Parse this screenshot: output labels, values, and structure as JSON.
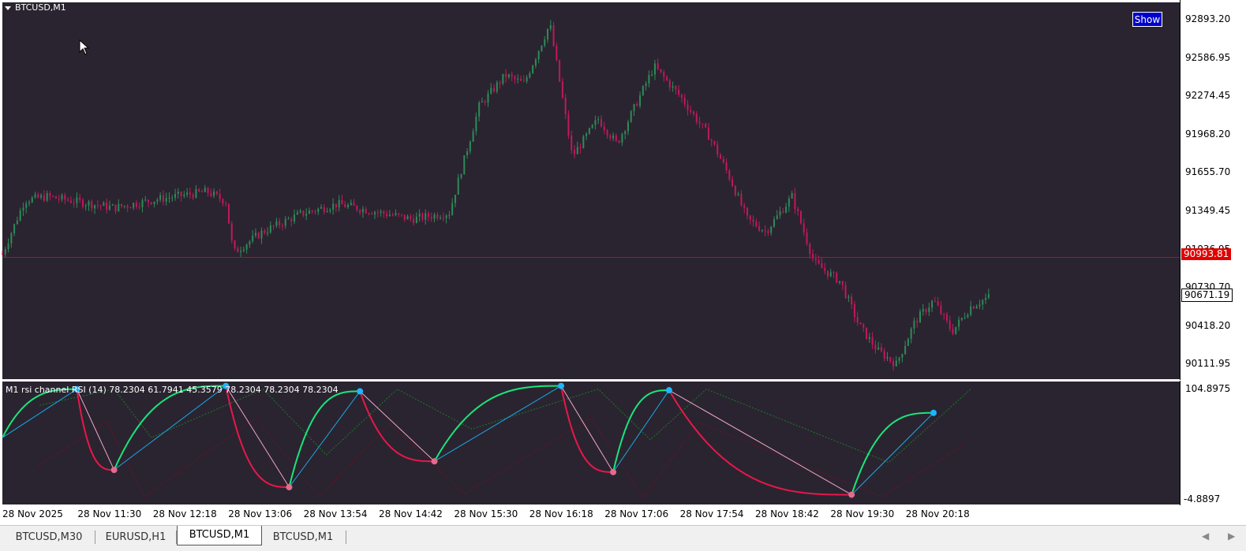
{
  "window": {
    "symbol_title": "BTCUSD,M1",
    "show_button": "Show"
  },
  "price_axis": {
    "labels": [
      "92893.20",
      "92586.95",
      "92274.45",
      "91968.20",
      "91655.70",
      "91349.45",
      "91036.95",
      "90730.70",
      "90418.20",
      "90111.95"
    ],
    "bid_tag": "90993.81",
    "last_tag": "90671.19"
  },
  "indicator": {
    "title": "M1 rsi channel RSI (14) 78.2304 61.7941 45.3579 78.2304 78.2304 78.2304",
    "axis_top": "104.8975",
    "axis_bottom": "-4.8897"
  },
  "time_axis": {
    "labels": [
      "28 Nov 2025",
      "28 Nov 11:30",
      "28 Nov 12:18",
      "28 Nov 13:06",
      "28 Nov 13:54",
      "28 Nov 14:42",
      "28 Nov 15:30",
      "28 Nov 16:18",
      "28 Nov 17:06",
      "28 Nov 17:54",
      "28 Nov 18:42",
      "28 Nov 19:30",
      "28 Nov 20:18"
    ]
  },
  "tabs": [
    {
      "label": "BTCUSD,M30",
      "active": false
    },
    {
      "label": "EURUSD,H1",
      "active": false
    },
    {
      "label": "BTCUSD,M1",
      "active": true
    },
    {
      "label": "BTCUSD,M1",
      "active": false
    }
  ],
  "colors": {
    "background": "#2a2430",
    "bull_candle": "#2e8b57",
    "bear_candle": "#c2185b",
    "price_line": "#e00000",
    "rsi_up": "#19e67a",
    "rsi_down": "#e8174a",
    "zigzag_up": "#19a9e6",
    "zigzag_down": "#f2a6c6",
    "high_dot": "#1fb6ff",
    "low_dot": "#e26b8e"
  },
  "chart_data": {
    "type": "line",
    "title": "BTCUSD,M1",
    "x_ticks": [
      "28 Nov 2025",
      "28 Nov 11:30",
      "28 Nov 12:18",
      "28 Nov 13:06",
      "28 Nov 13:54",
      "28 Nov 14:42",
      "28 Nov 15:30",
      "28 Nov 16:18",
      "28 Nov 17:06",
      "28 Nov 17:54",
      "28 Nov 18:42",
      "28 Nov 19:30",
      "28 Nov 20:18"
    ],
    "ylim": [
      90000,
      93000
    ],
    "y_ticks": [
      92893.2,
      92586.95,
      92274.45,
      91968.2,
      91655.7,
      91349.45,
      91036.95,
      90730.7,
      90418.2,
      90111.95
    ],
    "price_path": [
      {
        "t": 0,
        "p": 91020
      },
      {
        "t": 0.6,
        "p": 91450
      },
      {
        "t": 1.2,
        "p": 91480
      },
      {
        "t": 2,
        "p": 91440
      },
      {
        "t": 3,
        "p": 91390
      },
      {
        "t": 4.2,
        "p": 91460
      },
      {
        "t": 5.5,
        "p": 91520
      },
      {
        "t": 6,
        "p": 91440
      },
      {
        "t": 6.2,
        "p": 91030
      },
      {
        "t": 7,
        "p": 91200
      },
      {
        "t": 8,
        "p": 91340
      },
      {
        "t": 9,
        "p": 91420
      },
      {
        "t": 10,
        "p": 91360
      },
      {
        "t": 11,
        "p": 91300
      },
      {
        "t": 12,
        "p": 91350
      },
      {
        "t": 12.8,
        "p": 92200
      },
      {
        "t": 13.5,
        "p": 92450
      },
      {
        "t": 14,
        "p": 92380
      },
      {
        "t": 14.7,
        "p": 92860
      },
      {
        "t": 15.3,
        "p": 91800
      },
      {
        "t": 16,
        "p": 92100
      },
      {
        "t": 16.5,
        "p": 91900
      },
      {
        "t": 17.5,
        "p": 92520
      },
      {
        "t": 18.2,
        "p": 92280
      },
      {
        "t": 19,
        "p": 91950
      },
      {
        "t": 19.5,
        "p": 91650
      },
      {
        "t": 20,
        "p": 91300
      },
      {
        "t": 20.5,
        "p": 91200
      },
      {
        "t": 21.2,
        "p": 91480
      },
      {
        "t": 21.8,
        "p": 90950
      },
      {
        "t": 22.5,
        "p": 90800
      },
      {
        "t": 23,
        "p": 90450
      },
      {
        "t": 23.5,
        "p": 90250
      },
      {
        "t": 24,
        "p": 90140
      },
      {
        "t": 24.5,
        "p": 90480
      },
      {
        "t": 25,
        "p": 90650
      },
      {
        "t": 25.5,
        "p": 90400
      },
      {
        "t": 26,
        "p": 90600
      },
      {
        "t": 26.5,
        "p": 90680
      }
    ],
    "bid_line": 90993.81,
    "last_price": 90671.19,
    "rsi": {
      "ylim": [
        -4.8897,
        104.8975
      ],
      "values": [
        78.2304,
        61.7941,
        45.3579,
        78.2304,
        78.2304,
        78.2304
      ],
      "zigzag_points": [
        {
          "t": 0,
          "v": 55,
          "type": "start"
        },
        {
          "t": 2.0,
          "v": 100,
          "type": "high"
        },
        {
          "t": 3.0,
          "v": 25,
          "type": "low"
        },
        {
          "t": 6.0,
          "v": 103,
          "type": "high"
        },
        {
          "t": 7.7,
          "v": 9,
          "type": "low"
        },
        {
          "t": 9.6,
          "v": 98,
          "type": "high"
        },
        {
          "t": 11.6,
          "v": 33,
          "type": "low"
        },
        {
          "t": 15.0,
          "v": 103,
          "type": "high"
        },
        {
          "t": 16.4,
          "v": 23,
          "type": "low"
        },
        {
          "t": 17.9,
          "v": 99,
          "type": "high"
        },
        {
          "t": 22.8,
          "v": 2,
          "type": "low"
        },
        {
          "t": 25.0,
          "v": 78,
          "type": "high"
        }
      ]
    },
    "grid": false
  }
}
